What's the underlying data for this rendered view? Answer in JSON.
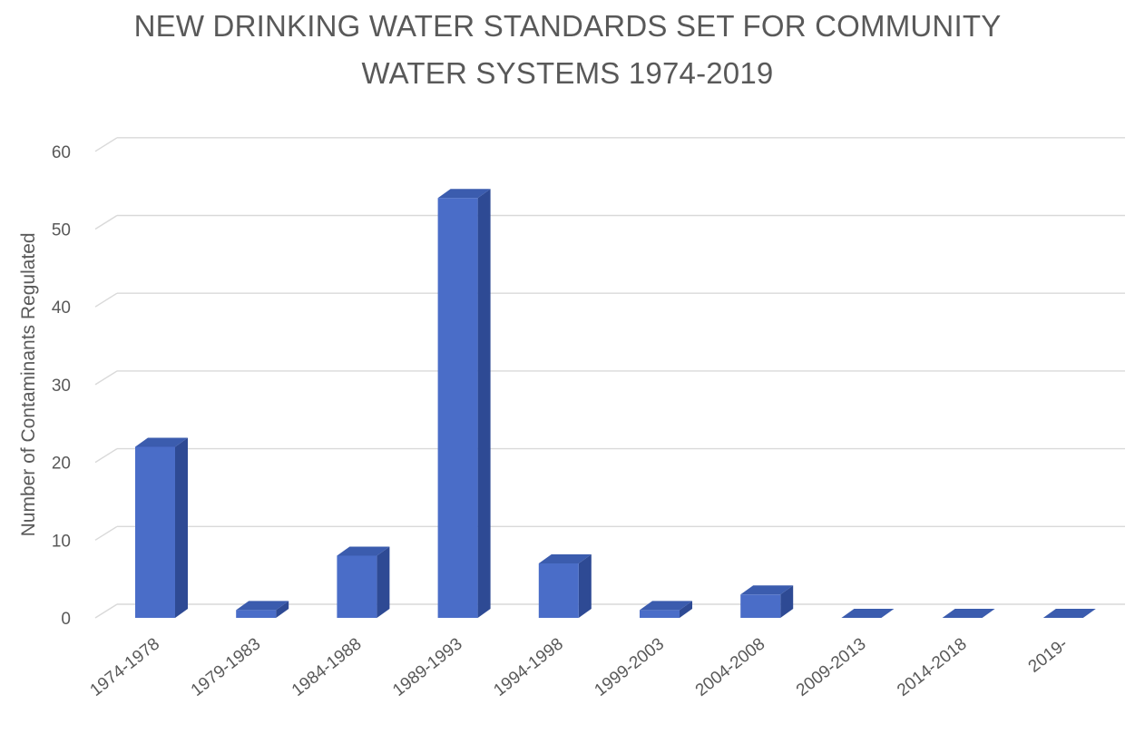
{
  "chart_data": {
    "type": "bar",
    "title_lines": [
      "NEW DRINKING WATER STANDARDS SET FOR COMMUNITY",
      "WATER SYSTEMS 1974-2019"
    ],
    "xlabel": "",
    "ylabel": "Number of Contaminants Regulated",
    "categories": [
      "1974-1978",
      "1979-1983",
      "1984-1988",
      "1989-1993",
      "1994-1998",
      "1999-2003",
      "2004-2008",
      "2009-2013",
      "2014-2018",
      "2019-"
    ],
    "values": [
      22,
      1,
      8,
      54,
      7,
      1,
      3,
      0,
      0,
      0
    ],
    "ylim": [
      0,
      60
    ],
    "yticks": [
      0,
      10,
      20,
      30,
      40,
      50,
      60
    ],
    "grid": true,
    "legend": "none",
    "style": "3d-column",
    "colors": {
      "bar_front": "#4a6dc8",
      "bar_side": "#2e4a94",
      "bar_top": "#3b5cae"
    }
  }
}
